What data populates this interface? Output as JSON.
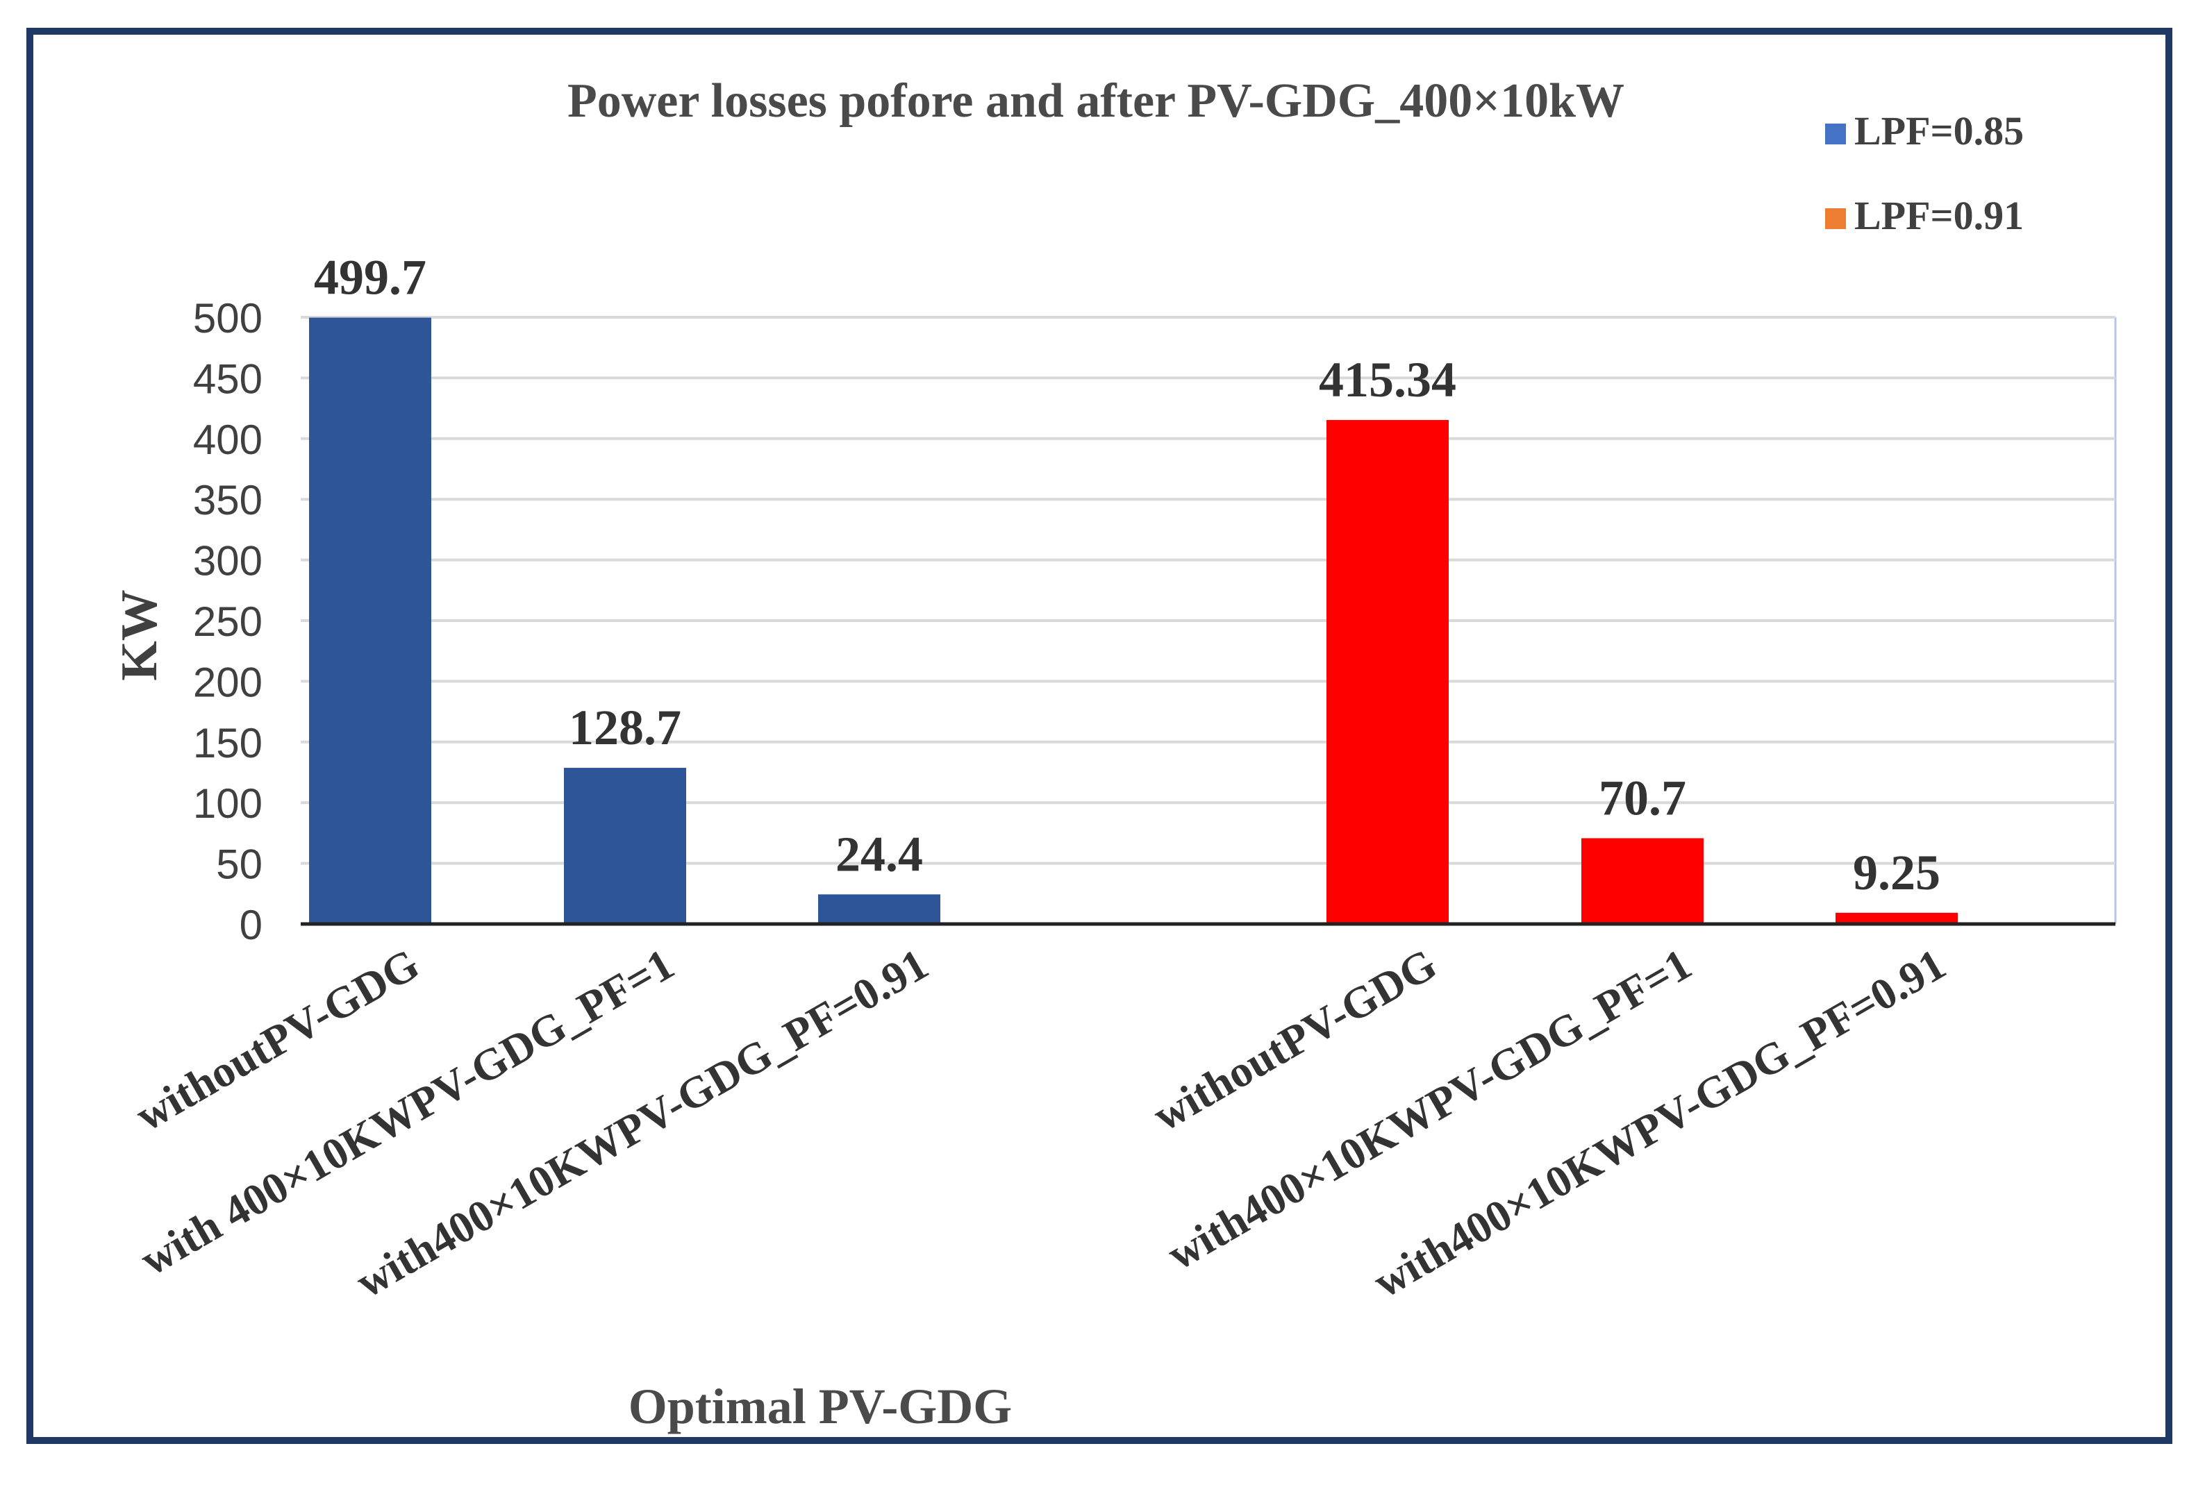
{
  "chart_data": {
    "type": "bar",
    "title": "Power losses pofore and after PV-GDG_400×10kW",
    "xlabel": "Optimal PV-GDG",
    "ylabel": "KW",
    "ylim": [
      0,
      500
    ],
    "y_ticks": [
      "0",
      "50",
      "100",
      "150",
      "200",
      "250",
      "300",
      "350",
      "400",
      "450",
      "500"
    ],
    "gridlines": true,
    "legend_position": "top-right",
    "series": [
      {
        "name": "LPF=0.85",
        "color": "#2e5597",
        "legend_color": "#4472c4",
        "categories": [
          "withoutPV-GDG",
          "with 400×10KWPV-GDG_PF=1",
          "with400×10KWPV-GDG_PF=0.91"
        ],
        "values": [
          499.7,
          128.7,
          24.4
        ],
        "labels": [
          "499.7",
          "128.7",
          "24.4"
        ]
      },
      {
        "name": "LPF=0.91",
        "color": "#ff0000",
        "legend_color": "#ed7d31",
        "categories": [
          "withoutPV-GDG",
          "with400×10KWPV-GDG_PF=1",
          "with400×10KWPV-GDG_PF=0.91"
        ],
        "values": [
          415.34,
          70.7,
          9.25
        ],
        "labels": [
          "415.34",
          "70.7",
          "9.25"
        ]
      }
    ]
  }
}
